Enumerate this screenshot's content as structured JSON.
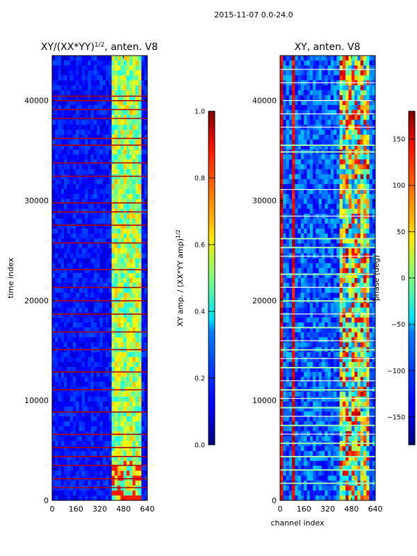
{
  "suptitle": "2015-11-07 0.0-24.0",
  "chart_data": [
    {
      "type": "heatmap",
      "title_main": "XY/(XX*YY)",
      "title_exp": "1/2",
      "title_suffix": ", anten. V8",
      "xlabel": "",
      "ylabel": "time index",
      "x_ticks": [
        0,
        160,
        320,
        480,
        640
      ],
      "y_ticks": [
        0,
        10000,
        20000,
        30000,
        40000
      ],
      "xlim": [
        0,
        640
      ],
      "ylim": [
        0,
        44500
      ],
      "colorbar": {
        "label_main": "XY amp. / (XX*YY amp)",
        "label_exp": "1/2",
        "ticks": [
          "0.0",
          "0.2",
          "0.4",
          "0.6",
          "0.8",
          "1.0"
        ],
        "range": [
          0.0,
          1.0
        ]
      }
    },
    {
      "type": "heatmap",
      "title_main": "XY, anten. V8",
      "title_exp": "",
      "title_suffix": "",
      "xlabel": "channel index",
      "ylabel": "",
      "x_ticks": [
        0,
        160,
        320,
        480,
        640
      ],
      "y_ticks": [
        0,
        10000,
        20000,
        30000,
        40000
      ],
      "xlim": [
        0,
        640
      ],
      "ylim": [
        0,
        44500
      ],
      "colorbar": {
        "label_main": "phase (deg)",
        "label_exp": "",
        "ticks": [
          "−150",
          "−100",
          "−50",
          "0",
          "50",
          "100",
          "150"
        ],
        "range": [
          -180,
          180
        ]
      }
    }
  ],
  "colormap": "jet"
}
